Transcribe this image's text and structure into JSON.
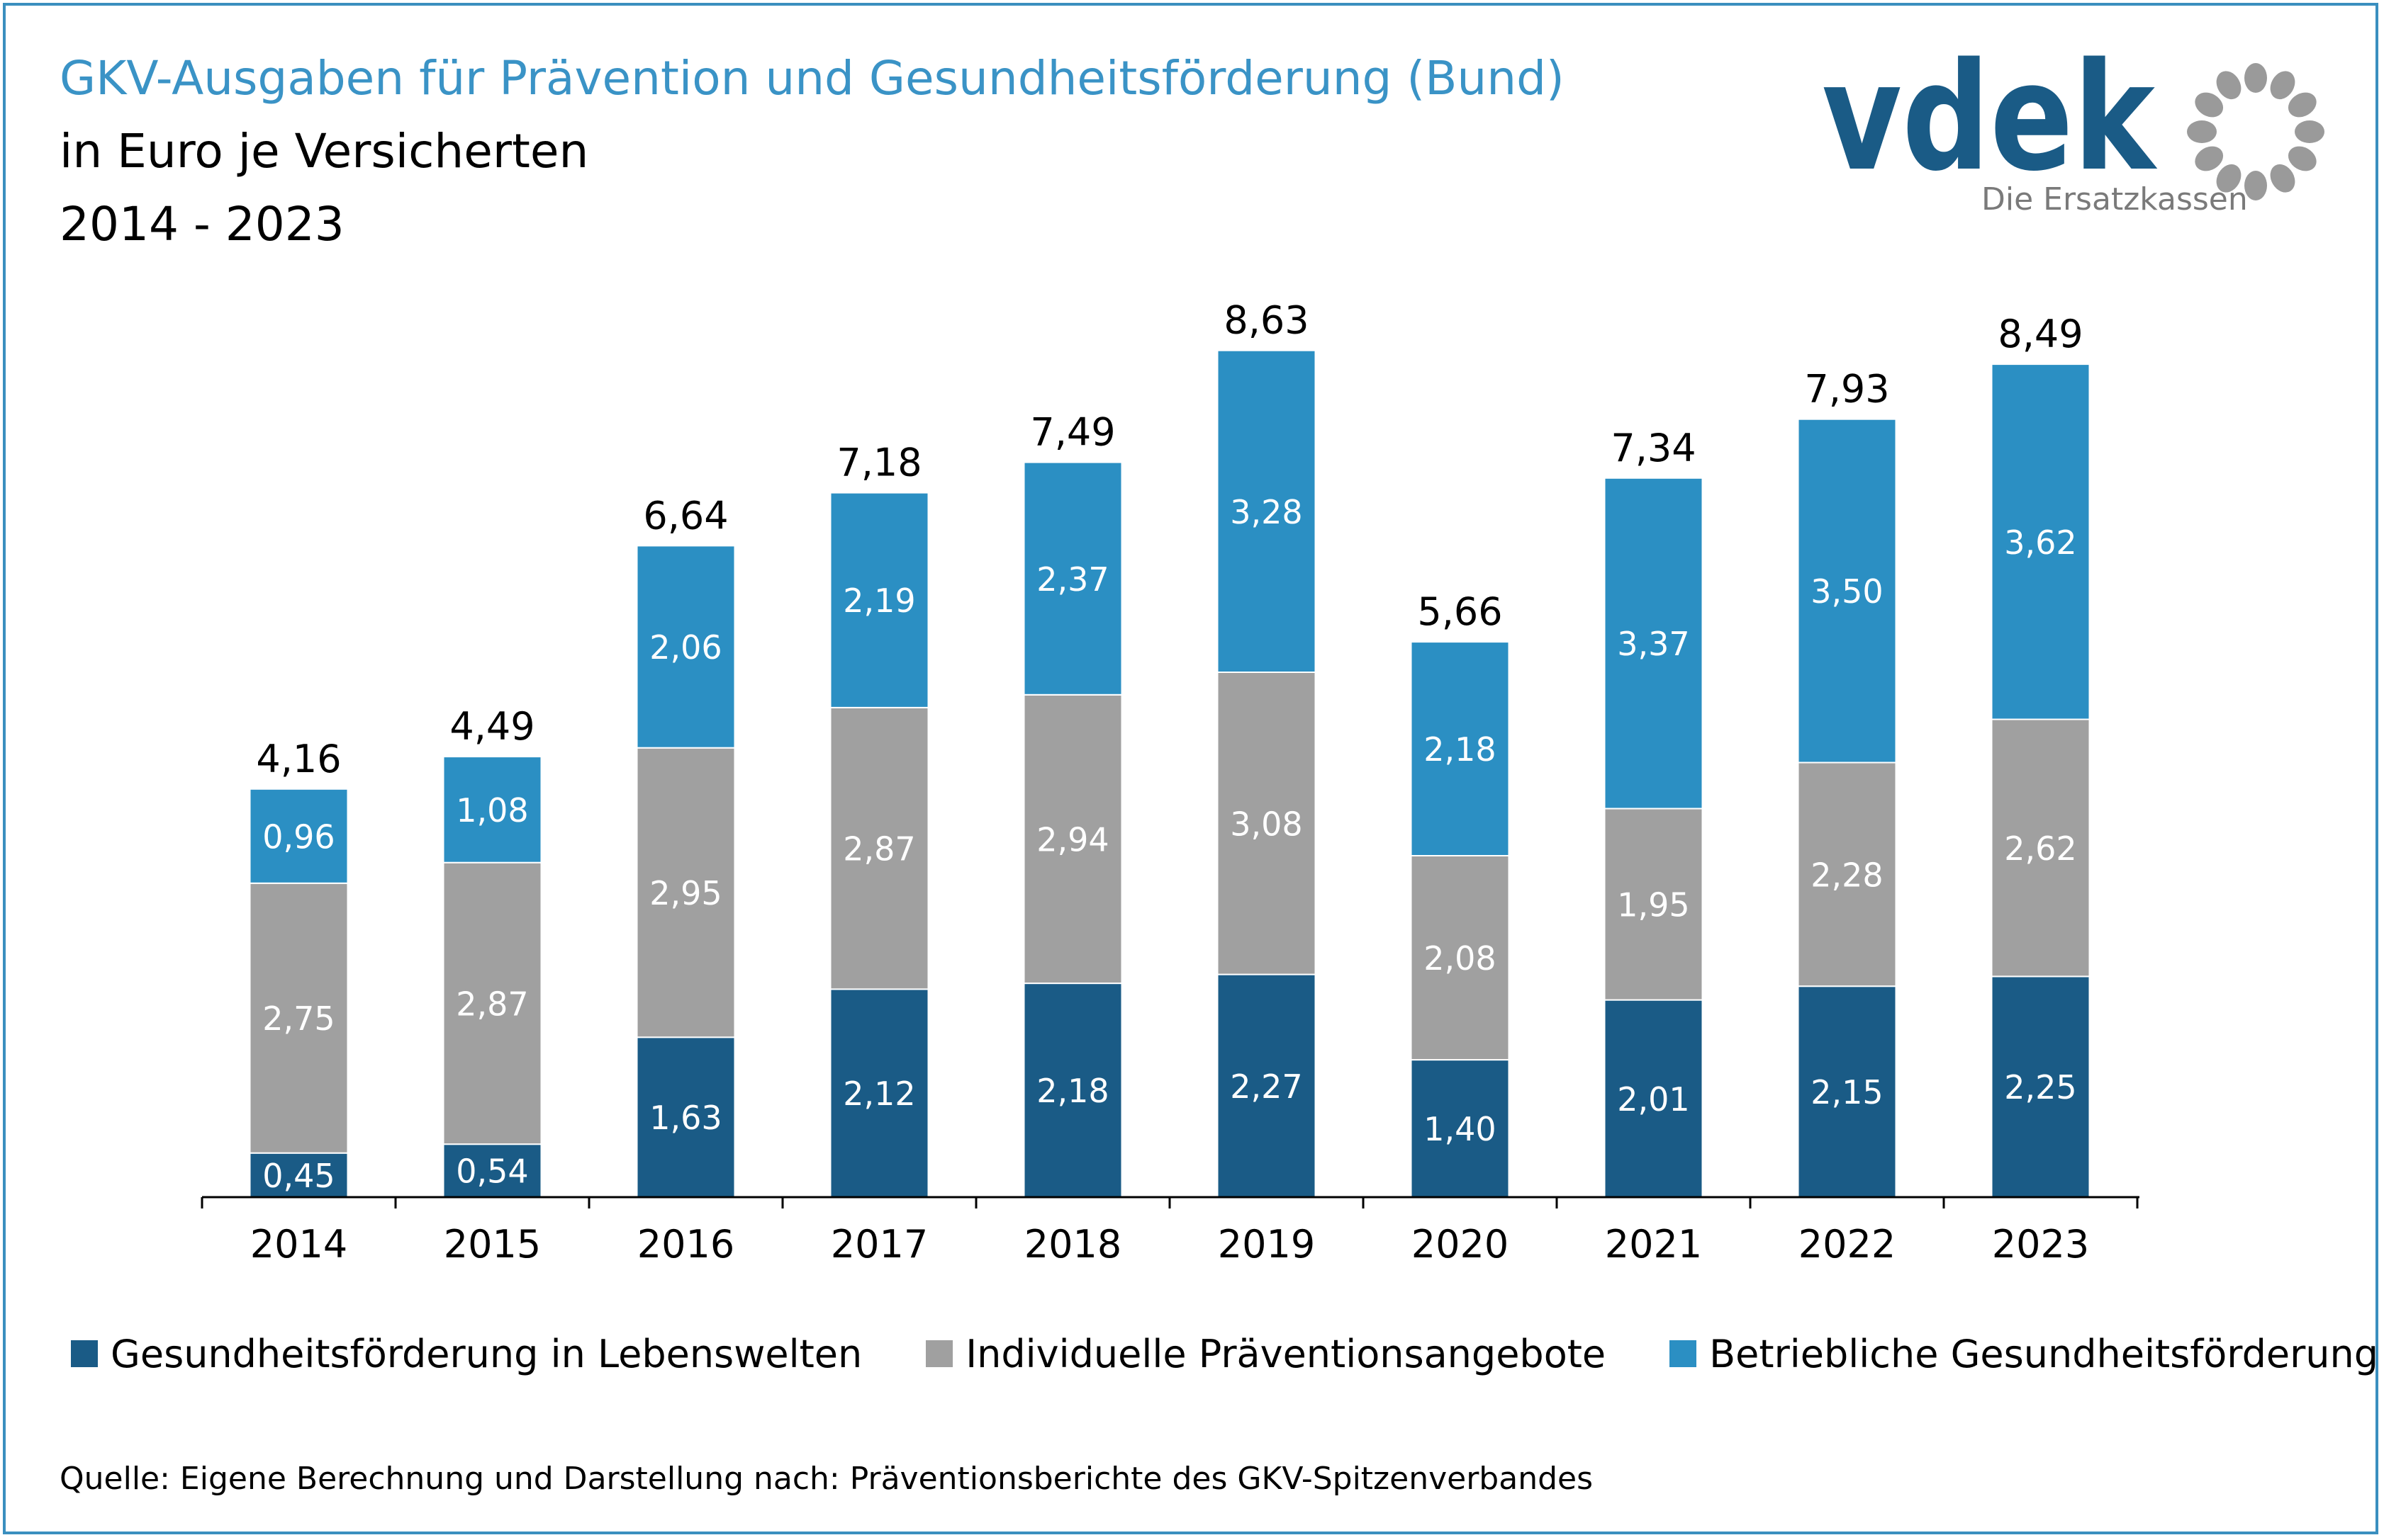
{
  "header": {
    "title": "GKV-Ausgaben für Prävention und Gesundheitsförderung (Bund)",
    "subtitle_line1": "in Euro je Versicherten",
    "subtitle_line2": "2014 - 2023"
  },
  "logo": {
    "wordmark": "vdek",
    "tagline": "Die Ersatzkassen",
    "color": "#1a5b86",
    "ring_color": "#9a9a9a"
  },
  "chart_data": {
    "type": "bar",
    "stacked": true,
    "categories": [
      "2014",
      "2015",
      "2016",
      "2017",
      "2018",
      "2019",
      "2020",
      "2021",
      "2022",
      "2023"
    ],
    "series": [
      {
        "name": "Gesundheitsförderung in Lebenswelten",
        "color": "#1a5b86",
        "values": [
          0.45,
          0.54,
          1.63,
          2.12,
          2.18,
          2.27,
          1.4,
          2.01,
          2.15,
          2.25
        ],
        "labels": [
          "0,45",
          "0,54",
          "1,63",
          "2,12",
          "2,18",
          "2,27",
          "1,40",
          "2,01",
          "2,15",
          "2,25"
        ]
      },
      {
        "name": "Individuelle Präventionsangebote",
        "color": "#a0a0a0",
        "values": [
          2.75,
          2.87,
          2.95,
          2.87,
          2.94,
          3.08,
          2.08,
          1.95,
          2.28,
          2.62
        ],
        "labels": [
          "2,75",
          "2,87",
          "2,95",
          "2,87",
          "2,94",
          "3,08",
          "2,08",
          "1,95",
          "2,28",
          "2,62"
        ]
      },
      {
        "name": "Betriebliche Gesundheitsförderung",
        "color": "#2b8fc3",
        "values": [
          0.96,
          1.08,
          2.06,
          2.19,
          2.37,
          3.28,
          2.18,
          3.37,
          3.5,
          3.62
        ],
        "labels": [
          "0,96",
          "1,08",
          "2,06",
          "2,19",
          "2,37",
          "3,28",
          "2,18",
          "3,37",
          "3,50",
          "3,62"
        ]
      }
    ],
    "totals": [
      4.16,
      4.49,
      6.64,
      7.18,
      7.49,
      8.63,
      5.66,
      7.34,
      7.93,
      8.49
    ],
    "total_labels": [
      "4,16",
      "4,49",
      "6,64",
      "7,18",
      "7,49",
      "8,63",
      "5,66",
      "7,34",
      "7,93",
      "8,49"
    ],
    "ylim": [
      0,
      9
    ],
    "grid": false,
    "legend_position": "bottom"
  },
  "source": "Quelle: Eigene Berechnung und Darstellung nach: Präventionsberichte des GKV-Spitzenverbandes"
}
